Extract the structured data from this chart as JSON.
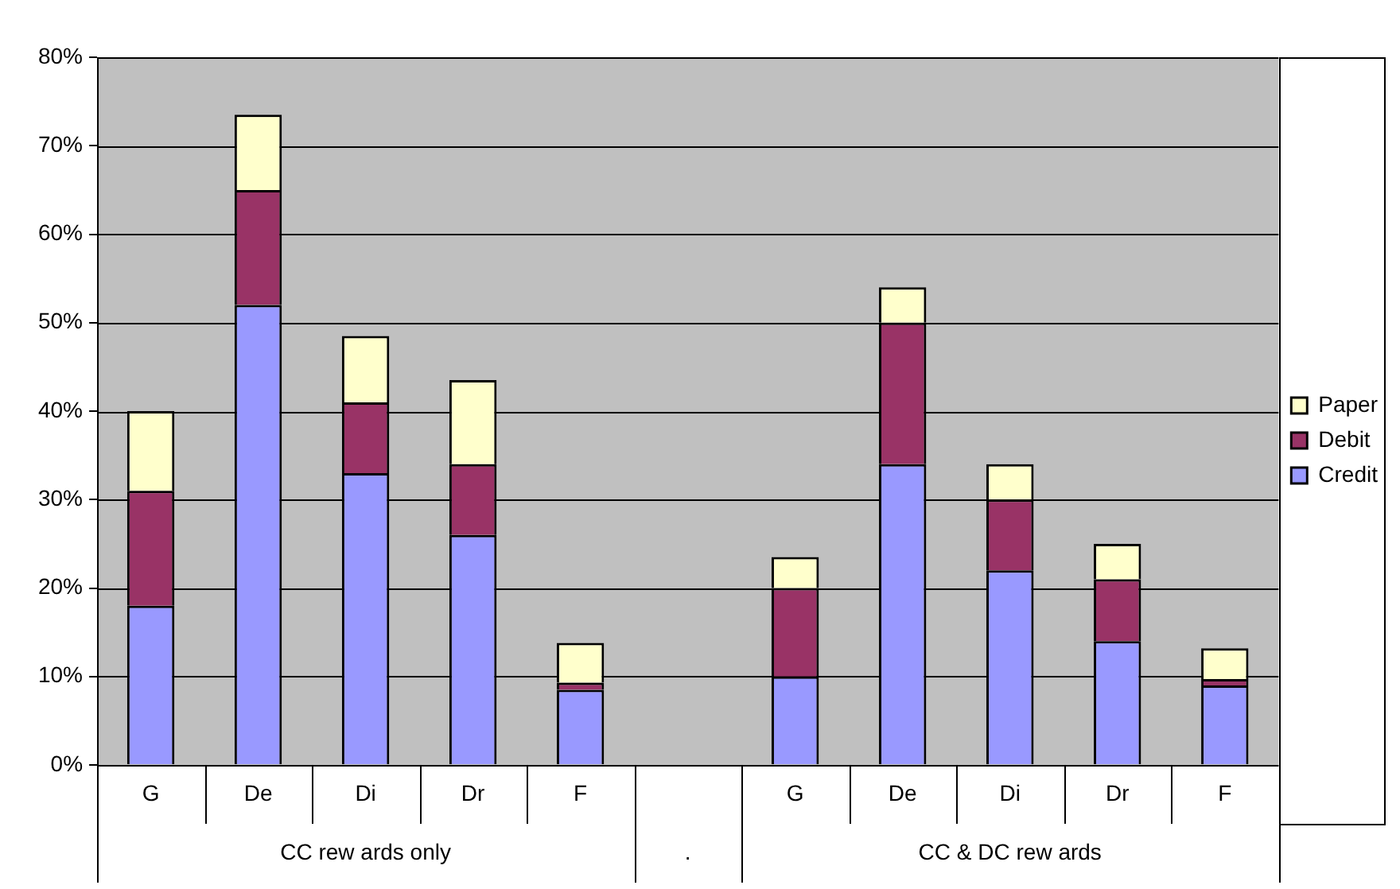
{
  "chart_data": {
    "type": "bar",
    "stacked": true,
    "categories": [
      "G",
      "De",
      "Di",
      "Dr",
      "F",
      null,
      "G",
      "De",
      "Di",
      "Dr",
      "F"
    ],
    "series": [
      {
        "name": "Credit",
        "color": "#9999ff",
        "values": [
          18,
          52,
          33,
          26,
          8.5,
          null,
          10,
          34,
          22,
          14,
          9
        ]
      },
      {
        "name": "Debit",
        "color": "#993366",
        "values": [
          13,
          13,
          8,
          8,
          0.8,
          null,
          10,
          16,
          8,
          7,
          0.7
        ]
      },
      {
        "name": "Paper",
        "color": "#ffffcc",
        "values": [
          9,
          8.5,
          7.5,
          9.5,
          4.5,
          null,
          3.5,
          4,
          4,
          4,
          3.5
        ]
      }
    ],
    "ylim": [
      0,
      80
    ],
    "yticks": [
      {
        "value": 0,
        "label": "0%"
      },
      {
        "value": 10,
        "label": "10%"
      },
      {
        "value": 20,
        "label": "20%"
      },
      {
        "value": 30,
        "label": "30%"
      },
      {
        "value": 40,
        "label": "40%"
      },
      {
        "value": 50,
        "label": "50%"
      },
      {
        "value": 60,
        "label": "60%"
      },
      {
        "value": 70,
        "label": "70%"
      },
      {
        "value": 80,
        "label": "80%"
      }
    ],
    "annotations": [
      "CC rew ards only",
      ".",
      "CC & DC rew ards"
    ],
    "grid": "y",
    "legend": "right"
  }
}
